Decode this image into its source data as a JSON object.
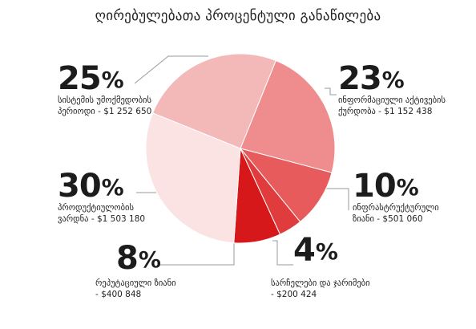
{
  "title": "ღირებულებათა პროცენტული განაწილება",
  "chart_data": {
    "type": "pie",
    "slices": [
      {
        "label": "ინფორმაციული აქტივების ქურდობა",
        "line1": "ინფორმაციული აქტივების",
        "line2": "ქურდობა - $1 152 438",
        "value": 23,
        "amount": "$1 152 438",
        "pct_text": "23",
        "color": "#ef8c8d"
      },
      {
        "label": "ინფრასტრუქტურული ზიანი",
        "line1": "ინფრასტრუქტურული",
        "line2": "ზიანი - $501 060",
        "value": 10,
        "amount": "$501 060",
        "pct_text": "10",
        "color": "#e75b5d"
      },
      {
        "label": "სარჩელები და ჯარიმები",
        "line1": "სარჩელები და ჯარიმები",
        "line2": "- $200 424",
        "value": 4,
        "amount": "$200 424",
        "pct_text": "4",
        "color": "#e03c3d"
      },
      {
        "label": "რეპუტაციული ზიანი",
        "line1": "რეპუტაციული ზიანი",
        "line2": "- $400 848",
        "value": 8,
        "amount": "$400 848",
        "pct_text": "8",
        "color": "#d7181a"
      },
      {
        "label": "პროდუქტიულობის ვარდნა",
        "line1": "პროდუქტიულობის",
        "line2": "ვარდნა - $1 503 180",
        "value": 30,
        "amount": "$1 503 180",
        "pct_text": "30",
        "color": "#fbe2e3"
      },
      {
        "label": "სისტემის უმოქმედობის პერიოდი",
        "line1": "სისტემის უმოქმედობის",
        "line2": "პერიოდი - $1 252 650",
        "value": 25,
        "amount": "$1 252 650",
        "pct_text": "25",
        "color": "#f3b8b8"
      }
    ],
    "legend": "none",
    "value_unit": "%"
  }
}
